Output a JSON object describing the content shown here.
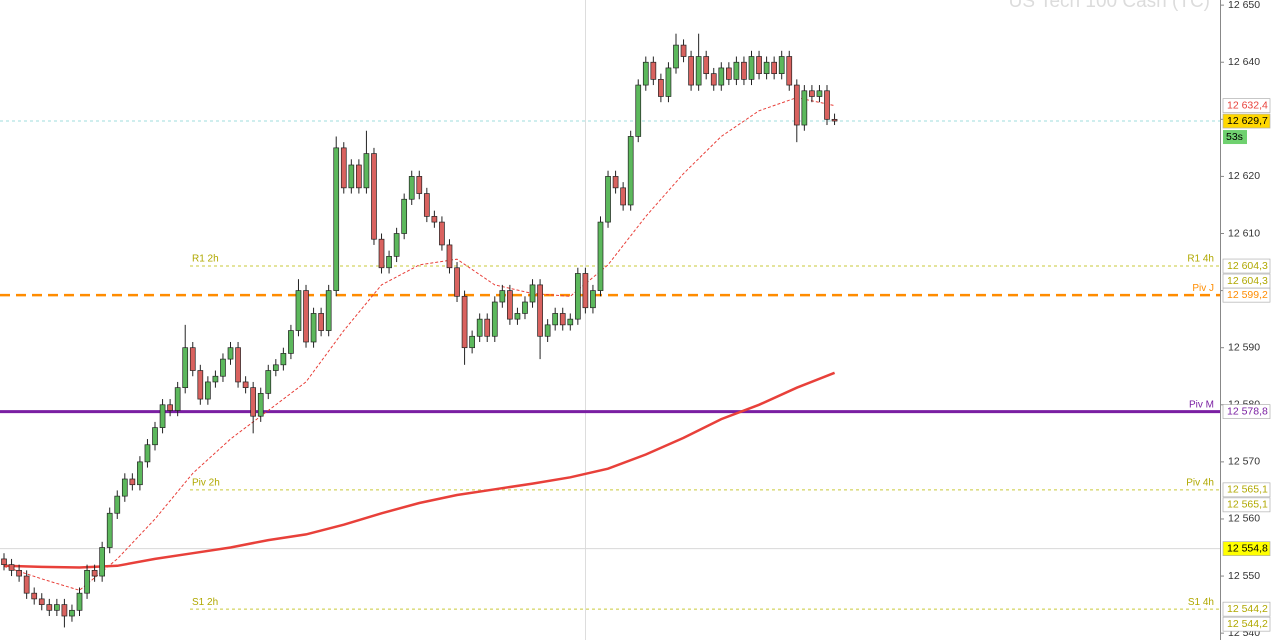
{
  "chart_data": {
    "type": "candlestick",
    "title": "US Tech 100 Cash (TC)",
    "xlim": [
      -0.53,
      161.05
    ],
    "ylim": [
      12538.8,
      12650.9
    ],
    "yticks": [
      {
        "value": 12650,
        "label": "12 650"
      },
      {
        "value": 12640,
        "label": "12 640"
      },
      {
        "value": 12630,
        "label": "12 630"
      },
      {
        "value": 12620,
        "label": "12 620"
      },
      {
        "value": 12610,
        "label": "12 610"
      },
      {
        "value": 12600,
        "label": "12 600"
      },
      {
        "value": 12590,
        "label": "12 590"
      },
      {
        "value": 12580,
        "label": "12 580"
      },
      {
        "value": 12570,
        "label": "12 570"
      },
      {
        "value": 12560,
        "label": "12 560"
      },
      {
        "value": 12550,
        "label": "12 550"
      },
      {
        "value": 12540,
        "label": "12 540"
      }
    ],
    "grid": false,
    "up_color": "#5cb85c",
    "down_color": "#d9625f",
    "candles": {
      "open": [
        12553,
        12552,
        12551,
        12550,
        12547,
        12546,
        12545,
        12544,
        12545,
        12543,
        12544,
        12547,
        12551,
        12550,
        12555,
        12561,
        12564,
        12567,
        12566,
        12570,
        12573,
        12576,
        12580,
        12579,
        12583,
        12590,
        12586,
        12581,
        12584,
        12585,
        12588,
        12590,
        12584,
        12583,
        12578,
        12582,
        12586,
        12587,
        12589,
        12593,
        12600,
        12591,
        12596,
        12593,
        12600,
        12625,
        12618,
        12622,
        12618,
        12624,
        12609,
        12604,
        12606,
        12610,
        12616,
        12620,
        12617,
        12613,
        12612,
        12608,
        12604,
        12599,
        12590,
        12592,
        12595,
        12592,
        12598,
        12600,
        12595,
        12596,
        12598,
        12601,
        12592,
        12594,
        12596,
        12594,
        12595,
        12603,
        12597,
        12600,
        12612,
        12620,
        12618,
        12615,
        12627,
        12636,
        12640,
        12637,
        12634,
        12639,
        12643,
        12641,
        12636,
        12641,
        12638,
        12636,
        12639,
        12637,
        12640,
        12637,
        12641,
        12638,
        12640,
        12638,
        12641,
        12636,
        12629,
        12635,
        12634,
        12635,
        12630
      ],
      "high": [
        12554,
        12553,
        12552,
        12551,
        12548,
        12547,
        12546,
        12546,
        12546,
        12545,
        12548,
        12552,
        12552,
        12556,
        12562,
        12565,
        12568,
        12568,
        12571,
        12574,
        12577,
        12581,
        12581,
        12584,
        12594,
        12591,
        12587,
        12585,
        12586,
        12589,
        12591,
        12591,
        12585,
        12584,
        12583,
        12587,
        12588,
        12590,
        12594,
        12602,
        12601,
        12597,
        12597,
        12601,
        12627,
        12626,
        12623,
        12623,
        12628,
        12625,
        12610,
        12607,
        12611,
        12617,
        12621,
        12621,
        12618,
        12614,
        12613,
        12609,
        12605,
        12600,
        12593,
        12596,
        12596,
        12599,
        12601,
        12601,
        12597,
        12599,
        12602,
        12602,
        12595,
        12597,
        12597,
        12596,
        12604,
        12604,
        12601,
        12613,
        12621,
        12621,
        12619,
        12628,
        12637,
        12641,
        12641,
        12638,
        12640,
        12645,
        12644,
        12642,
        12645,
        12642,
        12639,
        12640,
        12640,
        12641,
        12641,
        12642,
        12642,
        12641,
        12641,
        12642,
        12642,
        12637,
        12636,
        12636,
        12636,
        12636,
        12631
      ],
      "low": [
        12551,
        12550,
        12549,
        12546,
        12545,
        12544,
        12543,
        12543,
        12541,
        12542,
        12543,
        12546,
        12549,
        12549,
        12554,
        12560,
        12563,
        12565,
        12565,
        12569,
        12572,
        12575,
        12578,
        12578,
        12582,
        12585,
        12580,
        12580,
        12583,
        12584,
        12587,
        12583,
        12582,
        12575,
        12577,
        12581,
        12585,
        12586,
        12588,
        12592,
        12590,
        12590,
        12592,
        12592,
        12599,
        12617,
        12617,
        12617,
        12617,
        12608,
        12603,
        12603,
        12605,
        12609,
        12615,
        12616,
        12612,
        12611,
        12607,
        12603,
        12598,
        12587,
        12589,
        12591,
        12591,
        12591,
        12597,
        12594,
        12594,
        12595,
        12597,
        12588,
        12591,
        12593,
        12593,
        12593,
        12594,
        12596,
        12596,
        12599,
        12611,
        12617,
        12614,
        12614,
        12626,
        12635,
        12636,
        12633,
        12633,
        12638,
        12640,
        12635,
        12635,
        12637,
        12635,
        12635,
        12636,
        12636,
        12636,
        12636,
        12637,
        12637,
        12637,
        12637,
        12635,
        12626,
        12628,
        12633,
        12633,
        12629,
        12629
      ],
      "close": [
        12552,
        12551,
        12550,
        12547,
        12546,
        12545,
        12544,
        12545,
        12543,
        12544,
        12547,
        12551,
        12550,
        12555,
        12561,
        12564,
        12567,
        12566,
        12570,
        12573,
        12576,
        12580,
        12579,
        12583,
        12590,
        12586,
        12581,
        12584,
        12585,
        12588,
        12590,
        12584,
        12583,
        12578,
        12582,
        12586,
        12587,
        12589,
        12593,
        12600,
        12591,
        12596,
        12593,
        12600,
        12625,
        12618,
        12622,
        12618,
        12624,
        12609,
        12604,
        12606,
        12610,
        12616,
        12620,
        12617,
        12613,
        12612,
        12608,
        12604,
        12599,
        12590,
        12592,
        12595,
        12592,
        12598,
        12600,
        12595,
        12596,
        12598,
        12601,
        12592,
        12594,
        12596,
        12594,
        12595,
        12603,
        12597,
        12600,
        12612,
        12620,
        12618,
        12615,
        12627,
        12636,
        12640,
        12637,
        12634,
        12639,
        12643,
        12641,
        12636,
        12641,
        12638,
        12636,
        12639,
        12637,
        12640,
        12637,
        12641,
        12638,
        12640,
        12638,
        12641,
        12636,
        12629,
        12635,
        12634,
        12635,
        12630,
        12629.7
      ]
    },
    "lines": [
      {
        "color": "#e8403a",
        "width": 2.5,
        "style": "solid",
        "x": [
          0,
          5,
          10,
          15,
          20,
          25,
          30,
          35,
          40,
          45,
          50,
          55,
          60,
          65,
          70,
          75,
          80,
          85,
          90,
          95,
          100,
          105,
          110
        ],
        "values": [
          12551.8,
          12551.6,
          12551.5,
          12551.8,
          12553,
          12554,
          12555,
          12556.3,
          12557.3,
          12559,
          12561,
          12562.8,
          12564.2,
          12565.2,
          12566.2,
          12567.3,
          12568.8,
          12571.3,
          12574.2,
          12577.5,
          12580,
          12583,
          12585.6
        ]
      },
      {
        "color": "#e8403a",
        "width": 1,
        "style": "dashed",
        "x": [
          0,
          5,
          10,
          15,
          20,
          25,
          30,
          35,
          40,
          45,
          50,
          55,
          60,
          65,
          70,
          75,
          80,
          85,
          90,
          95,
          100,
          105,
          110
        ],
        "values": [
          12551.7,
          12549.5,
          12547.5,
          12553,
          12560,
          12568,
          12574,
          12579,
          12584,
          12593,
          12601,
          12604.5,
          12605.5,
          12601,
          12599.5,
          12599,
          12604.5,
          12613,
          12620.5,
          12627,
          12631.5,
          12633.8,
          12632.4
        ],
        "tag": "12 632,4"
      }
    ],
    "levels": [
      {
        "value": 12604.3,
        "left_label": "R1 2h",
        "right_label": "R1 4h",
        "tags": [
          "12 604,3",
          "12 604,3"
        ],
        "color": "#c9c93a",
        "text_color": "#b0a800",
        "style": "dotted",
        "width": 1
      },
      {
        "value": 12599.2,
        "right_label": "Piv J",
        "tags": [
          "12 599,2"
        ],
        "color": "#ff8c00",
        "text_color": "#ff8c00",
        "style": "dashed",
        "width": 2.5
      },
      {
        "value": 12578.8,
        "right_label": "Piv M",
        "tags": [
          "12 578,8"
        ],
        "color": "#7a1fa2",
        "text_color": "#7a1fa2",
        "style": "solid",
        "width": 3
      },
      {
        "value": 12565.1,
        "left_label": "Piv 2h",
        "right_label": "Piv 4h",
        "tags": [
          "12 565,1",
          "12 565,1"
        ],
        "color": "#c9c93a",
        "text_color": "#b0a800",
        "style": "dotted",
        "width": 1
      },
      {
        "value": 12554.8,
        "tags": [
          "12 554,8"
        ],
        "color": "#d8d8d8",
        "text_color": "#000000",
        "tag_fill": "#ffff00",
        "style": "solid",
        "width": 1
      },
      {
        "value": 12544.2,
        "left_label": "S1 2h",
        "right_label": "S1 4h",
        "tags": [
          "12 544,2",
          "12 544,2"
        ],
        "color": "#c9c93a",
        "text_color": "#b0a800",
        "style": "dotted",
        "width": 1
      },
      {
        "value": 12629.7,
        "tags": [
          "12 629,7"
        ],
        "color": "#9fdede",
        "text_color": "#000000",
        "tag_fill": "#ffd700",
        "style": "dotted",
        "width": 1,
        "countdown": "53s"
      }
    ]
  }
}
